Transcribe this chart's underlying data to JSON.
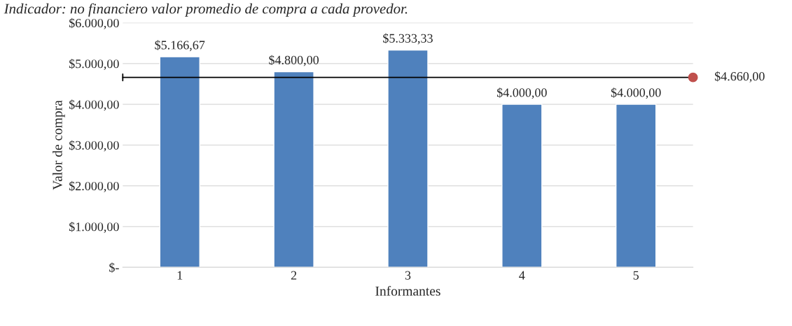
{
  "chart_data": {
    "type": "bar",
    "title": "Indicador: no financiero valor promedio de compra a cada provedor.",
    "xlabel": "Informantes",
    "ylabel": "Valor de compra",
    "categories": [
      "1",
      "2",
      "3",
      "4",
      "5"
    ],
    "values": [
      5166.67,
      4800,
      5333.33,
      4000,
      4000
    ],
    "value_labels": [
      "$5.166,67",
      "$4.800,00",
      "$5.333,33",
      "$4.000,00",
      "$4.000,00"
    ],
    "color": "#4f81bd",
    "ylim": [
      0,
      6000
    ],
    "yticks": [
      {
        "value": 0,
        "label": "$-"
      },
      {
        "value": 1000,
        "label": "$1.000,00"
      },
      {
        "value": 2000,
        "label": "$2.000,00"
      },
      {
        "value": 3000,
        "label": "$3.000,00"
      },
      {
        "value": 4000,
        "label": "$4.000,00"
      },
      {
        "value": 5000,
        "label": "$5.000,00"
      },
      {
        "value": 6000,
        "label": "$6.000,00"
      }
    ],
    "ref_lines": [
      {
        "axis": "y",
        "value": 4660,
        "label": "$4.660,00",
        "color": "#000000"
      }
    ],
    "grid": "y"
  }
}
